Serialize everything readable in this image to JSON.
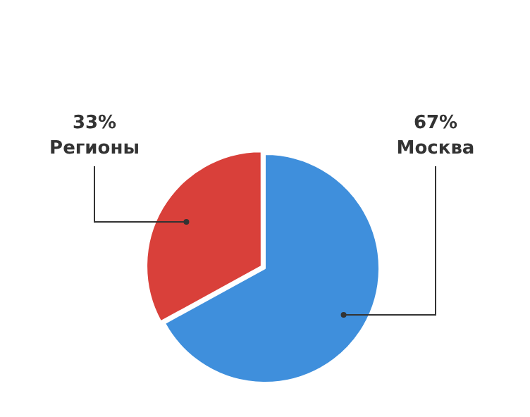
{
  "chart_data": {
    "type": "pie",
    "categories": [
      "Москва",
      "Регионы"
    ],
    "values": [
      67,
      33
    ],
    "value_labels": [
      "67%",
      "33%"
    ],
    "colors": [
      "#3f8fdc",
      "#d9403a"
    ],
    "legend": false
  }
}
